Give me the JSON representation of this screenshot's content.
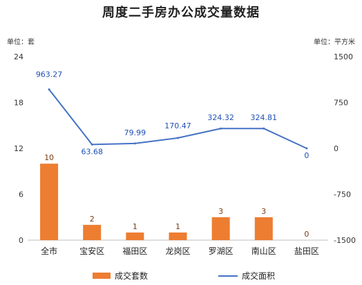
{
  "chart_data": {
    "type": "bar+line",
    "title": "周度二手房办公成交量数据",
    "left_unit": "单位：套",
    "right_unit": "单位：平方米",
    "categories": [
      "全市",
      "宝安区",
      "福田区",
      "龙岗区",
      "罗湖区",
      "南山区",
      "盐田区"
    ],
    "series": [
      {
        "name": "成交套数",
        "type": "bar",
        "axis": "left",
        "values": [
          10,
          2,
          1,
          1,
          3,
          3,
          0
        ],
        "color": "#ED7D31"
      },
      {
        "name": "成交面积",
        "type": "line",
        "axis": "right",
        "values": [
          963.27,
          63.68,
          79.99,
          170.47,
          324.32,
          324.81,
          0
        ],
        "color": "#4472C4"
      }
    ],
    "left_axis": {
      "min": 0,
      "max": 24,
      "ticks": [
        "0",
        "6",
        "12",
        "18",
        "24"
      ]
    },
    "right_axis": {
      "min": -1500,
      "max": 1500,
      "ticks": [
        "-1500",
        "-750",
        "0",
        "750",
        "1500"
      ]
    },
    "legend_position": "bottom",
    "grid": false
  }
}
